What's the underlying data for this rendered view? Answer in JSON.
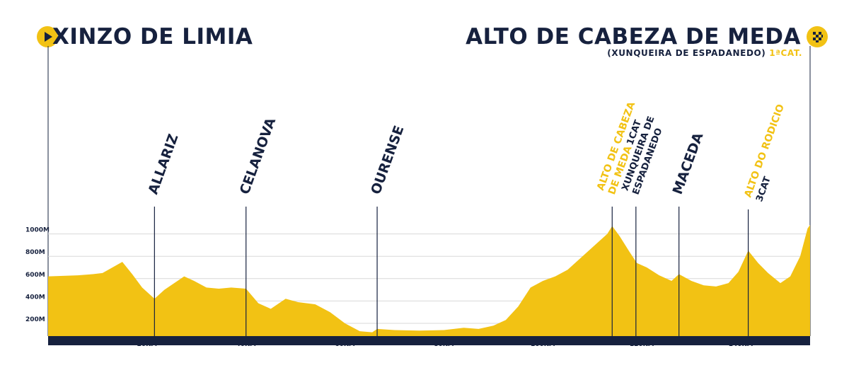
{
  "header": {
    "start": "XINZO DE LIMIA",
    "finish": "ALTO DE CABEZA DE MEDA",
    "finish_sub": "(XUNQUEIRA DE ESPADANEDO)",
    "finish_cat": "1ªCAT."
  },
  "colors": {
    "profile": "#f2c214",
    "ink": "#16213e",
    "grid": "#d8d8d8"
  },
  "icons": {
    "start": "play-icon",
    "finish": "checkered-flag-icon"
  },
  "chart_data": {
    "type": "area",
    "title": "",
    "xlabel": "",
    "ylabel": "",
    "xlim": [
      0,
      154
    ],
    "ylim": [
      100,
      1200
    ],
    "x_ticks": [
      {
        "value": 20,
        "label": "20KM"
      },
      {
        "value": 40,
        "label": "40KM"
      },
      {
        "value": 60,
        "label": "60KM"
      },
      {
        "value": 80,
        "label": "80KM"
      },
      {
        "value": 100,
        "label": "100KM"
      },
      {
        "value": 120,
        "label": "120KM"
      },
      {
        "value": 140,
        "label": "140KM"
      }
    ],
    "y_ticks": [
      {
        "value": 200,
        "label": "200M"
      },
      {
        "value": 400,
        "label": "400M"
      },
      {
        "value": 600,
        "label": "600M"
      },
      {
        "value": 800,
        "label": "800M"
      },
      {
        "value": 1000,
        "label": "1000M"
      }
    ],
    "grid": true,
    "series": [
      {
        "points": [
          [
            0,
            620
          ],
          [
            3,
            625
          ],
          [
            6,
            630
          ],
          [
            9,
            640
          ],
          [
            11,
            650
          ],
          [
            13,
            700
          ],
          [
            15,
            750
          ],
          [
            17,
            640
          ],
          [
            19,
            520
          ],
          [
            21.5,
            420
          ],
          [
            23.5,
            500
          ],
          [
            25.5,
            560
          ],
          [
            27.5,
            620
          ],
          [
            29.5,
            580
          ],
          [
            32,
            520
          ],
          [
            34.5,
            510
          ],
          [
            37,
            520
          ],
          [
            40,
            510
          ],
          [
            42.5,
            380
          ],
          [
            45,
            330
          ],
          [
            48,
            420
          ],
          [
            50.5,
            390
          ],
          [
            54,
            370
          ],
          [
            57,
            300
          ],
          [
            60,
            200
          ],
          [
            63,
            130
          ],
          [
            65.5,
            120
          ],
          [
            66.5,
            150
          ],
          [
            70,
            140
          ],
          [
            75,
            135
          ],
          [
            80,
            140
          ],
          [
            84,
            160
          ],
          [
            87,
            150
          ],
          [
            90,
            180
          ],
          [
            92.5,
            230
          ],
          [
            95,
            350
          ],
          [
            97.5,
            520
          ],
          [
            100,
            580
          ],
          [
            102.5,
            620
          ],
          [
            105,
            680
          ],
          [
            108,
            800
          ],
          [
            111,
            920
          ],
          [
            113,
            1000
          ],
          [
            114,
            1070
          ],
          [
            115.5,
            980
          ],
          [
            117.5,
            840
          ],
          [
            119,
            740
          ],
          [
            121,
            700
          ],
          [
            123.5,
            630
          ],
          [
            126,
            580
          ],
          [
            127.5,
            640
          ],
          [
            130,
            580
          ],
          [
            132.5,
            540
          ],
          [
            135,
            530
          ],
          [
            137.5,
            560
          ],
          [
            139.5,
            660
          ],
          [
            141.5,
            850
          ],
          [
            143.5,
            740
          ],
          [
            145.5,
            650
          ],
          [
            148,
            560
          ],
          [
            150,
            620
          ],
          [
            152,
            800
          ],
          [
            153.5,
            1050
          ],
          [
            154,
            1080
          ]
        ]
      }
    ],
    "markers": [
      {
        "km": 21.5,
        "lines": [
          "ALLARIZ"
        ],
        "style": "town",
        "size": 19,
        "line_top": 292
      },
      {
        "km": 40,
        "lines": [
          "CELANOVA"
        ],
        "style": "town",
        "size": 19,
        "line_top": 292
      },
      {
        "km": 66.5,
        "lines": [
          "OURENSE"
        ],
        "style": "town",
        "size": 19,
        "line_top": 292
      },
      {
        "km": 114,
        "lines": [
          "ALTO DE CABEZA",
          "DE MEDA"
        ],
        "cat": "1CAT",
        "style": "climb",
        "size": 14,
        "line_top": 292
      },
      {
        "km": 118.8,
        "lines": [
          "XUNQUEIRA DE",
          "ESPADANEDO"
        ],
        "style": "cat",
        "size": 13,
        "line_top": 292
      },
      {
        "km": 127.5,
        "lines": [
          "MACEDA"
        ],
        "style": "town",
        "size": 19,
        "line_top": 292
      },
      {
        "km": 141.5,
        "lines": [
          "ALTO DO RODICIO"
        ],
        "cat": "3CAT",
        "style": "climb",
        "size": 14,
        "line_top": 296
      }
    ]
  }
}
